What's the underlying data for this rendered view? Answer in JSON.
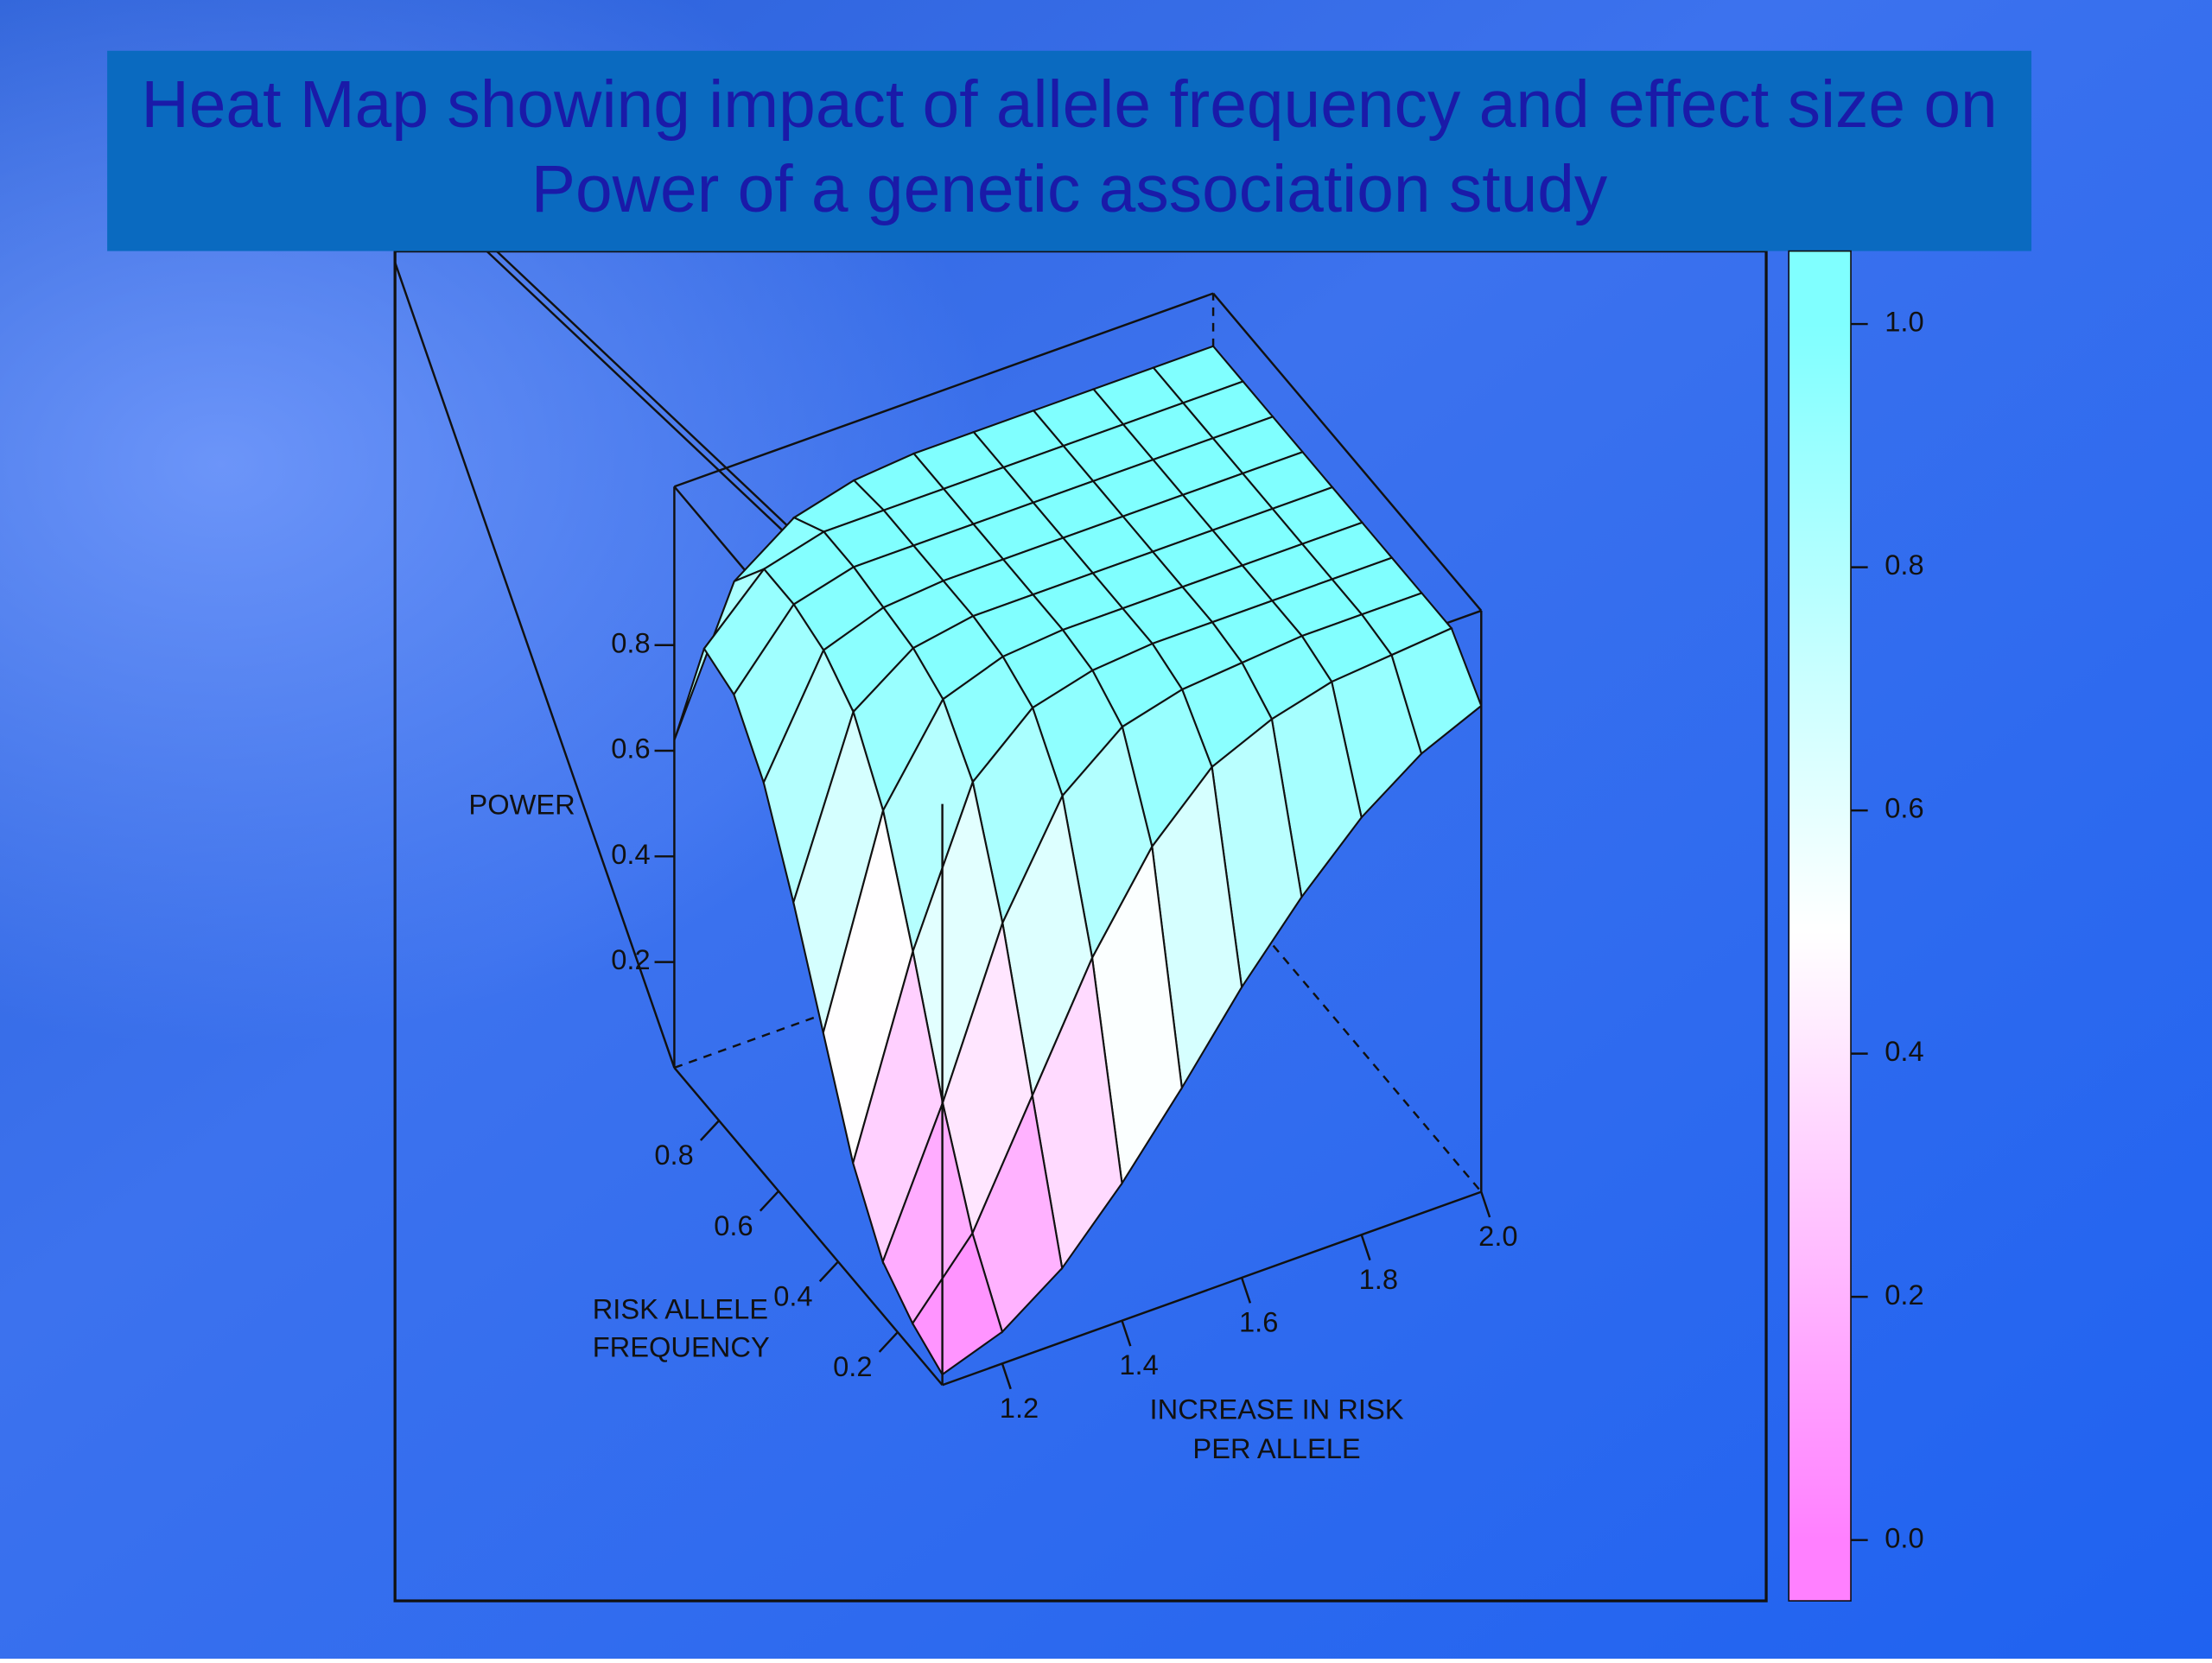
{
  "chart_data": {
    "type": "surface",
    "title": "Heat Map showing impact of allele frequency and effect size on Power of a genetic association study",
    "xlabel": "INCREASE IN RISK PER ALLELE",
    "ylabel": "RISK ALLELE FREQUENCY",
    "zlabel": "POWER",
    "x": [
      1.1,
      1.2,
      1.3,
      1.4,
      1.5,
      1.6,
      1.7,
      1.8,
      1.9,
      2.0
    ],
    "y": [
      0.05,
      0.15,
      0.25,
      0.35,
      0.45,
      0.55,
      0.65,
      0.75,
      0.85,
      0.95
    ],
    "z": [
      [
        0.02,
        0.06,
        0.14,
        0.26,
        0.4,
        0.55,
        0.68,
        0.79,
        0.87,
        0.92
      ],
      [
        0.05,
        0.18,
        0.4,
        0.62,
        0.79,
        0.9,
        0.95,
        0.98,
        0.99,
        1.0
      ],
      [
        0.1,
        0.36,
        0.66,
        0.86,
        0.95,
        0.98,
        0.99,
        1.0,
        1.0,
        1.0
      ],
      [
        0.22,
        0.58,
        0.86,
        0.96,
        0.99,
        1.0,
        1.0,
        1.0,
        1.0,
        1.0
      ],
      [
        0.4,
        0.78,
        0.95,
        0.99,
        1.0,
        1.0,
        1.0,
        1.0,
        1.0,
        1.0
      ],
      [
        0.58,
        0.9,
        0.98,
        1.0,
        1.0,
        1.0,
        1.0,
        1.0,
        1.0,
        1.0
      ],
      [
        0.74,
        0.95,
        0.99,
        1.0,
        1.0,
        1.0,
        1.0,
        1.0,
        1.0,
        1.0
      ],
      [
        0.84,
        0.97,
        1.0,
        1.0,
        1.0,
        1.0,
        1.0,
        1.0,
        1.0,
        1.0
      ],
      [
        0.86,
        0.97,
        1.0,
        1.0,
        1.0,
        1.0,
        1.0,
        1.0,
        1.0,
        1.0
      ],
      [
        0.62,
        0.88,
        0.96,
        0.99,
        1.0,
        1.0,
        1.0,
        1.0,
        1.0,
        1.0
      ]
    ],
    "xlim": [
      1.1,
      2.0
    ],
    "xticks": [
      1.2,
      1.4,
      1.6,
      1.8,
      {
        "value": 2,
        "label": "2.0"
      }
    ],
    "ylim": [
      0.05,
      0.95
    ],
    "yticks": [
      0.2,
      0.4,
      0.6,
      0.8
    ],
    "zlim": [
      0,
      1.1
    ],
    "zticks": [
      0.2,
      0.4,
      0.6,
      0.8
    ],
    "colormap": [
      "#ff80ff",
      "#ffffff",
      "#80ffff"
    ],
    "colorbar": {
      "lim": [
        -0.05,
        1.06
      ],
      "ticks": [
        {
          "value": 0,
          "label": "0.0"
        },
        0.2,
        0.4,
        0.6,
        0.8,
        {
          "value": 1,
          "label": "1.0"
        }
      ]
    }
  }
}
